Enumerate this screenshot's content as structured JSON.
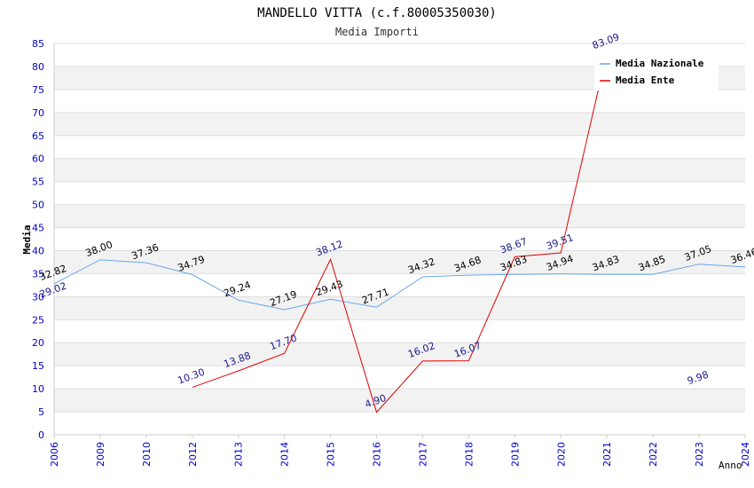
{
  "chart_data": {
    "type": "line",
    "title": "MANDELLO VITTA (c.f.80005350030)",
    "subtitle": "Media Importi",
    "xlabel": "Anno",
    "ylabel": "Media",
    "ylim": [
      0,
      85
    ],
    "y_ticks": [
      0,
      5,
      10,
      15,
      20,
      25,
      30,
      35,
      40,
      45,
      50,
      55,
      60,
      65,
      70,
      75,
      80,
      85
    ],
    "categories": [
      "2006",
      "2009",
      "2010",
      "2012",
      "2013",
      "2014",
      "2015",
      "2016",
      "2017",
      "2018",
      "2019",
      "2020",
      "2021",
      "2022",
      "2023",
      "2024"
    ],
    "series": [
      {
        "name": "Media Nazionale",
        "color": "#6aa7e8",
        "label_color": "#000000",
        "values": [
          32.82,
          38.0,
          37.36,
          34.79,
          29.24,
          27.19,
          29.43,
          27.71,
          34.32,
          34.68,
          34.83,
          34.94,
          34.83,
          34.85,
          37.05,
          36.46
        ],
        "labels": [
          "32.82",
          "38.00",
          "37.36",
          "34.79",
          "29.24",
          "27.19",
          "29.43",
          "27.71",
          "34.32",
          "34.68",
          "34.83",
          "34.94",
          "34.83",
          "34.85",
          "37.05",
          "36.46"
        ]
      },
      {
        "name": "Media Ente",
        "color": "#e00000",
        "label_color": "#1a1a8c",
        "values": [
          29.02,
          null,
          null,
          10.3,
          13.88,
          17.7,
          38.12,
          4.9,
          16.02,
          16.07,
          38.67,
          39.51,
          83.09,
          null,
          9.98,
          null
        ],
        "labels": [
          "29.02",
          null,
          null,
          "10.30",
          "13.88",
          "17.70",
          "38.12",
          "4.90",
          "16.02",
          "16.07",
          "38.67",
          "39.51",
          "83.09",
          null,
          "9.98",
          null
        ]
      }
    ],
    "legend": {
      "position": "top-right"
    },
    "grid": true,
    "axis_label_color": "#0000cc"
  }
}
